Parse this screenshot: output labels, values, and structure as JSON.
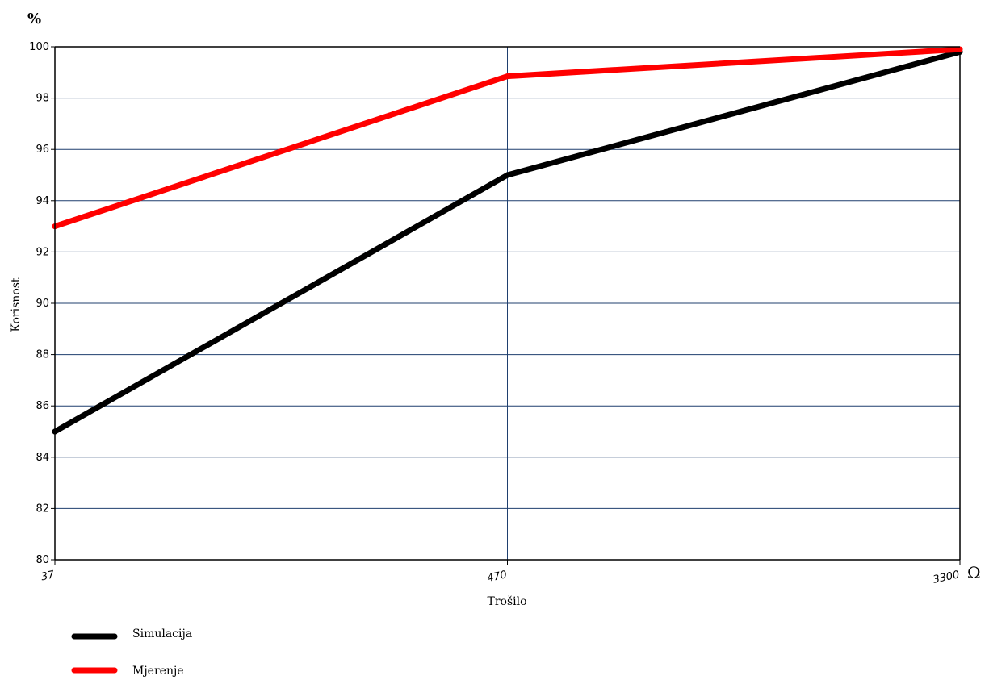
{
  "chart_data": {
    "type": "line",
    "x": [
      "37",
      "470",
      "3300"
    ],
    "xlabel": "Trošilo",
    "ylabel": "Korisnost",
    "y_unit": "%",
    "x_unit": "Ω",
    "ylim": [
      80,
      100
    ],
    "yticks": [
      80,
      82,
      84,
      86,
      88,
      90,
      92,
      94,
      96,
      98,
      100
    ],
    "grid": true,
    "legend_position": "bottom-left",
    "series": [
      {
        "name": "Simulacija",
        "color": "#000000",
        "values": [
          85.0,
          95.0,
          99.8
        ]
      },
      {
        "name": "Mjerenje",
        "color": "#ff0000",
        "values": [
          93.0,
          98.85,
          99.9
        ]
      }
    ]
  }
}
